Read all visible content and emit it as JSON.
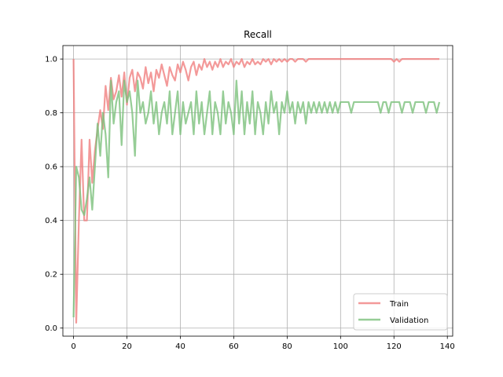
{
  "chart_data": {
    "type": "line",
    "title": "Recall",
    "xlabel": "",
    "ylabel": "",
    "xlim": [
      -4,
      142
    ],
    "ylim": [
      -0.03,
      1.05
    ],
    "xticks": [
      0,
      20,
      40,
      60,
      80,
      100,
      120,
      140
    ],
    "yticks": [
      0.0,
      0.2,
      0.4,
      0.6,
      0.8,
      1.0
    ],
    "xtick_labels": [
      "0",
      "20",
      "40",
      "60",
      "80",
      "100",
      "120",
      "140"
    ],
    "ytick_labels": [
      "0.0",
      "0.2",
      "0.4",
      "0.6",
      "0.8",
      "1.0"
    ],
    "grid": true,
    "legend_position": "bottom-right",
    "series": [
      {
        "name": "Train",
        "color": "#f08080",
        "x": [
          0,
          1,
          2,
          3,
          4,
          5,
          6,
          7,
          8,
          9,
          10,
          11,
          12,
          13,
          14,
          15,
          16,
          17,
          18,
          19,
          20,
          21,
          22,
          23,
          24,
          25,
          26,
          27,
          28,
          29,
          30,
          31,
          32,
          33,
          34,
          35,
          36,
          37,
          38,
          39,
          40,
          41,
          42,
          43,
          44,
          45,
          46,
          47,
          48,
          49,
          50,
          51,
          52,
          53,
          54,
          55,
          56,
          57,
          58,
          59,
          60,
          61,
          62,
          63,
          64,
          65,
          66,
          67,
          68,
          69,
          70,
          71,
          72,
          73,
          74,
          75,
          76,
          77,
          78,
          79,
          80,
          81,
          82,
          83,
          84,
          85,
          86,
          87,
          88,
          89,
          90,
          91,
          92,
          93,
          94,
          95,
          96,
          97,
          98,
          99,
          100,
          101,
          102,
          103,
          104,
          105,
          106,
          107,
          108,
          109,
          110,
          111,
          112,
          113,
          114,
          115,
          116,
          117,
          118,
          119,
          120,
          121,
          122,
          123,
          124,
          125,
          126,
          127,
          128,
          129,
          130,
          131,
          132,
          133,
          134,
          135,
          136,
          137
        ],
        "y": [
          1.0,
          0.02,
          0.4,
          0.7,
          0.4,
          0.4,
          0.7,
          0.54,
          0.66,
          0.74,
          0.81,
          0.74,
          0.9,
          0.81,
          0.93,
          0.85,
          0.88,
          0.94,
          0.86,
          0.95,
          0.83,
          0.93,
          0.96,
          0.88,
          0.95,
          0.93,
          0.89,
          0.97,
          0.91,
          0.95,
          0.88,
          0.96,
          0.93,
          0.98,
          0.94,
          0.9,
          0.97,
          0.94,
          0.92,
          0.98,
          0.95,
          0.99,
          0.96,
          0.92,
          0.97,
          0.99,
          0.94,
          0.98,
          0.96,
          1.0,
          0.97,
          0.99,
          0.96,
          0.99,
          0.97,
          1.0,
          0.97,
          0.99,
          0.98,
          1.0,
          0.97,
          0.99,
          0.98,
          1.0,
          0.97,
          0.99,
          0.98,
          1.0,
          0.98,
          0.99,
          0.98,
          1.0,
          0.99,
          1.0,
          0.98,
          1.0,
          0.99,
          1.0,
          0.99,
          1.0,
          0.99,
          1.0,
          1.0,
          0.99,
          1.0,
          1.0,
          1.0,
          0.99,
          1.0,
          1.0,
          1.0,
          1.0,
          1.0,
          1.0,
          1.0,
          1.0,
          1.0,
          1.0,
          1.0,
          1.0,
          1.0,
          1.0,
          1.0,
          1.0,
          1.0,
          1.0,
          1.0,
          1.0,
          1.0,
          1.0,
          1.0,
          1.0,
          1.0,
          1.0,
          1.0,
          1.0,
          1.0,
          1.0,
          1.0,
          1.0,
          0.99,
          1.0,
          0.99,
          1.0,
          1.0,
          1.0,
          1.0,
          1.0,
          1.0,
          1.0,
          1.0,
          1.0,
          1.0,
          1.0,
          1.0,
          1.0,
          1.0,
          1.0
        ]
      },
      {
        "name": "Validation",
        "color": "#7cc07c",
        "x": [
          0,
          1,
          2,
          3,
          4,
          5,
          6,
          7,
          8,
          9,
          10,
          11,
          12,
          13,
          14,
          15,
          16,
          17,
          18,
          19,
          20,
          21,
          22,
          23,
          24,
          25,
          26,
          27,
          28,
          29,
          30,
          31,
          32,
          33,
          34,
          35,
          36,
          37,
          38,
          39,
          40,
          41,
          42,
          43,
          44,
          45,
          46,
          47,
          48,
          49,
          50,
          51,
          52,
          53,
          54,
          55,
          56,
          57,
          58,
          59,
          60,
          61,
          62,
          63,
          64,
          65,
          66,
          67,
          68,
          69,
          70,
          71,
          72,
          73,
          74,
          75,
          76,
          77,
          78,
          79,
          80,
          81,
          82,
          83,
          84,
          85,
          86,
          87,
          88,
          89,
          90,
          91,
          92,
          93,
          94,
          95,
          96,
          97,
          98,
          99,
          100,
          101,
          102,
          103,
          104,
          105,
          106,
          107,
          108,
          109,
          110,
          111,
          112,
          113,
          114,
          115,
          116,
          117,
          118,
          119,
          120,
          121,
          122,
          123,
          124,
          125,
          126,
          127,
          128,
          129,
          130,
          131,
          132,
          133,
          134,
          135,
          136,
          137
        ],
        "y": [
          0.04,
          0.6,
          0.56,
          0.44,
          0.42,
          0.48,
          0.56,
          0.44,
          0.6,
          0.76,
          0.64,
          0.8,
          0.72,
          0.56,
          0.92,
          0.76,
          0.84,
          0.88,
          0.68,
          0.92,
          0.84,
          0.88,
          0.8,
          0.64,
          0.92,
          0.8,
          0.84,
          0.76,
          0.8,
          0.88,
          0.76,
          0.84,
          0.72,
          0.8,
          0.84,
          0.76,
          0.88,
          0.72,
          0.8,
          0.88,
          0.72,
          0.84,
          0.76,
          0.8,
          0.84,
          0.72,
          0.88,
          0.76,
          0.84,
          0.72,
          0.8,
          0.88,
          0.72,
          0.84,
          0.8,
          0.72,
          0.88,
          0.76,
          0.84,
          0.8,
          0.72,
          0.92,
          0.76,
          0.88,
          0.72,
          0.84,
          0.76,
          0.88,
          0.72,
          0.84,
          0.8,
          0.72,
          0.84,
          0.76,
          0.88,
          0.8,
          0.84,
          0.72,
          0.84,
          0.8,
          0.88,
          0.8,
          0.84,
          0.76,
          0.84,
          0.8,
          0.84,
          0.76,
          0.84,
          0.8,
          0.84,
          0.8,
          0.84,
          0.8,
          0.84,
          0.8,
          0.84,
          0.8,
          0.84,
          0.8,
          0.84,
          0.84,
          0.84,
          0.84,
          0.8,
          0.84,
          0.84,
          0.84,
          0.84,
          0.84,
          0.84,
          0.84,
          0.84,
          0.84,
          0.84,
          0.8,
          0.84,
          0.84,
          0.8,
          0.84,
          0.84,
          0.84,
          0.84,
          0.8,
          0.84,
          0.84,
          0.84,
          0.8,
          0.84,
          0.84,
          0.84,
          0.84,
          0.8,
          0.84,
          0.84,
          0.84,
          0.8,
          0.84
        ]
      }
    ]
  }
}
